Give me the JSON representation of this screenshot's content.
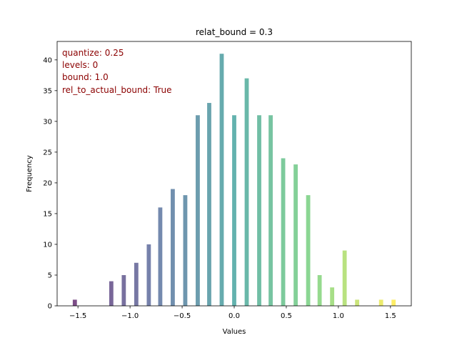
{
  "chart_data": {
    "type": "bar",
    "title": "relat_bound = 0.3",
    "xlabel": "Values",
    "ylabel": "Frequency",
    "xlim": [
      -1.7,
      1.7
    ],
    "ylim": [
      0,
      43
    ],
    "xticks": [
      -1.5,
      -1.0,
      -0.5,
      0.0,
      0.5,
      1.0,
      1.5
    ],
    "xtick_labels": [
      "−1.5",
      "−1.0",
      "−0.5",
      "0.0",
      "0.5",
      "1.0",
      "1.5"
    ],
    "yticks": [
      0,
      5,
      10,
      15,
      20,
      25,
      30,
      35,
      40
    ],
    "ytick_labels": [
      "0",
      "5",
      "10",
      "15",
      "20",
      "25",
      "30",
      "35",
      "40"
    ],
    "grid": false,
    "legend": false,
    "colormap": "viridis",
    "bar_alpha": 0.7,
    "x": [
      -1.53,
      -1.18,
      -1.06,
      -0.94,
      -0.82,
      -0.71,
      -0.59,
      -0.47,
      -0.35,
      -0.24,
      -0.12,
      0.0,
      0.12,
      0.24,
      0.35,
      0.47,
      0.59,
      0.71,
      0.82,
      0.94,
      1.06,
      1.18,
      1.41,
      1.53
    ],
    "values": [
      1,
      4,
      5,
      7,
      10,
      16,
      19,
      18,
      31,
      33,
      41,
      31,
      37,
      31,
      31,
      24,
      23,
      18,
      5,
      3,
      9,
      1,
      1,
      1
    ],
    "annotations": [
      "quantize: 0.25",
      "levels: 0",
      "bound: 1.0",
      "rel_to_actual_bound: True"
    ]
  }
}
